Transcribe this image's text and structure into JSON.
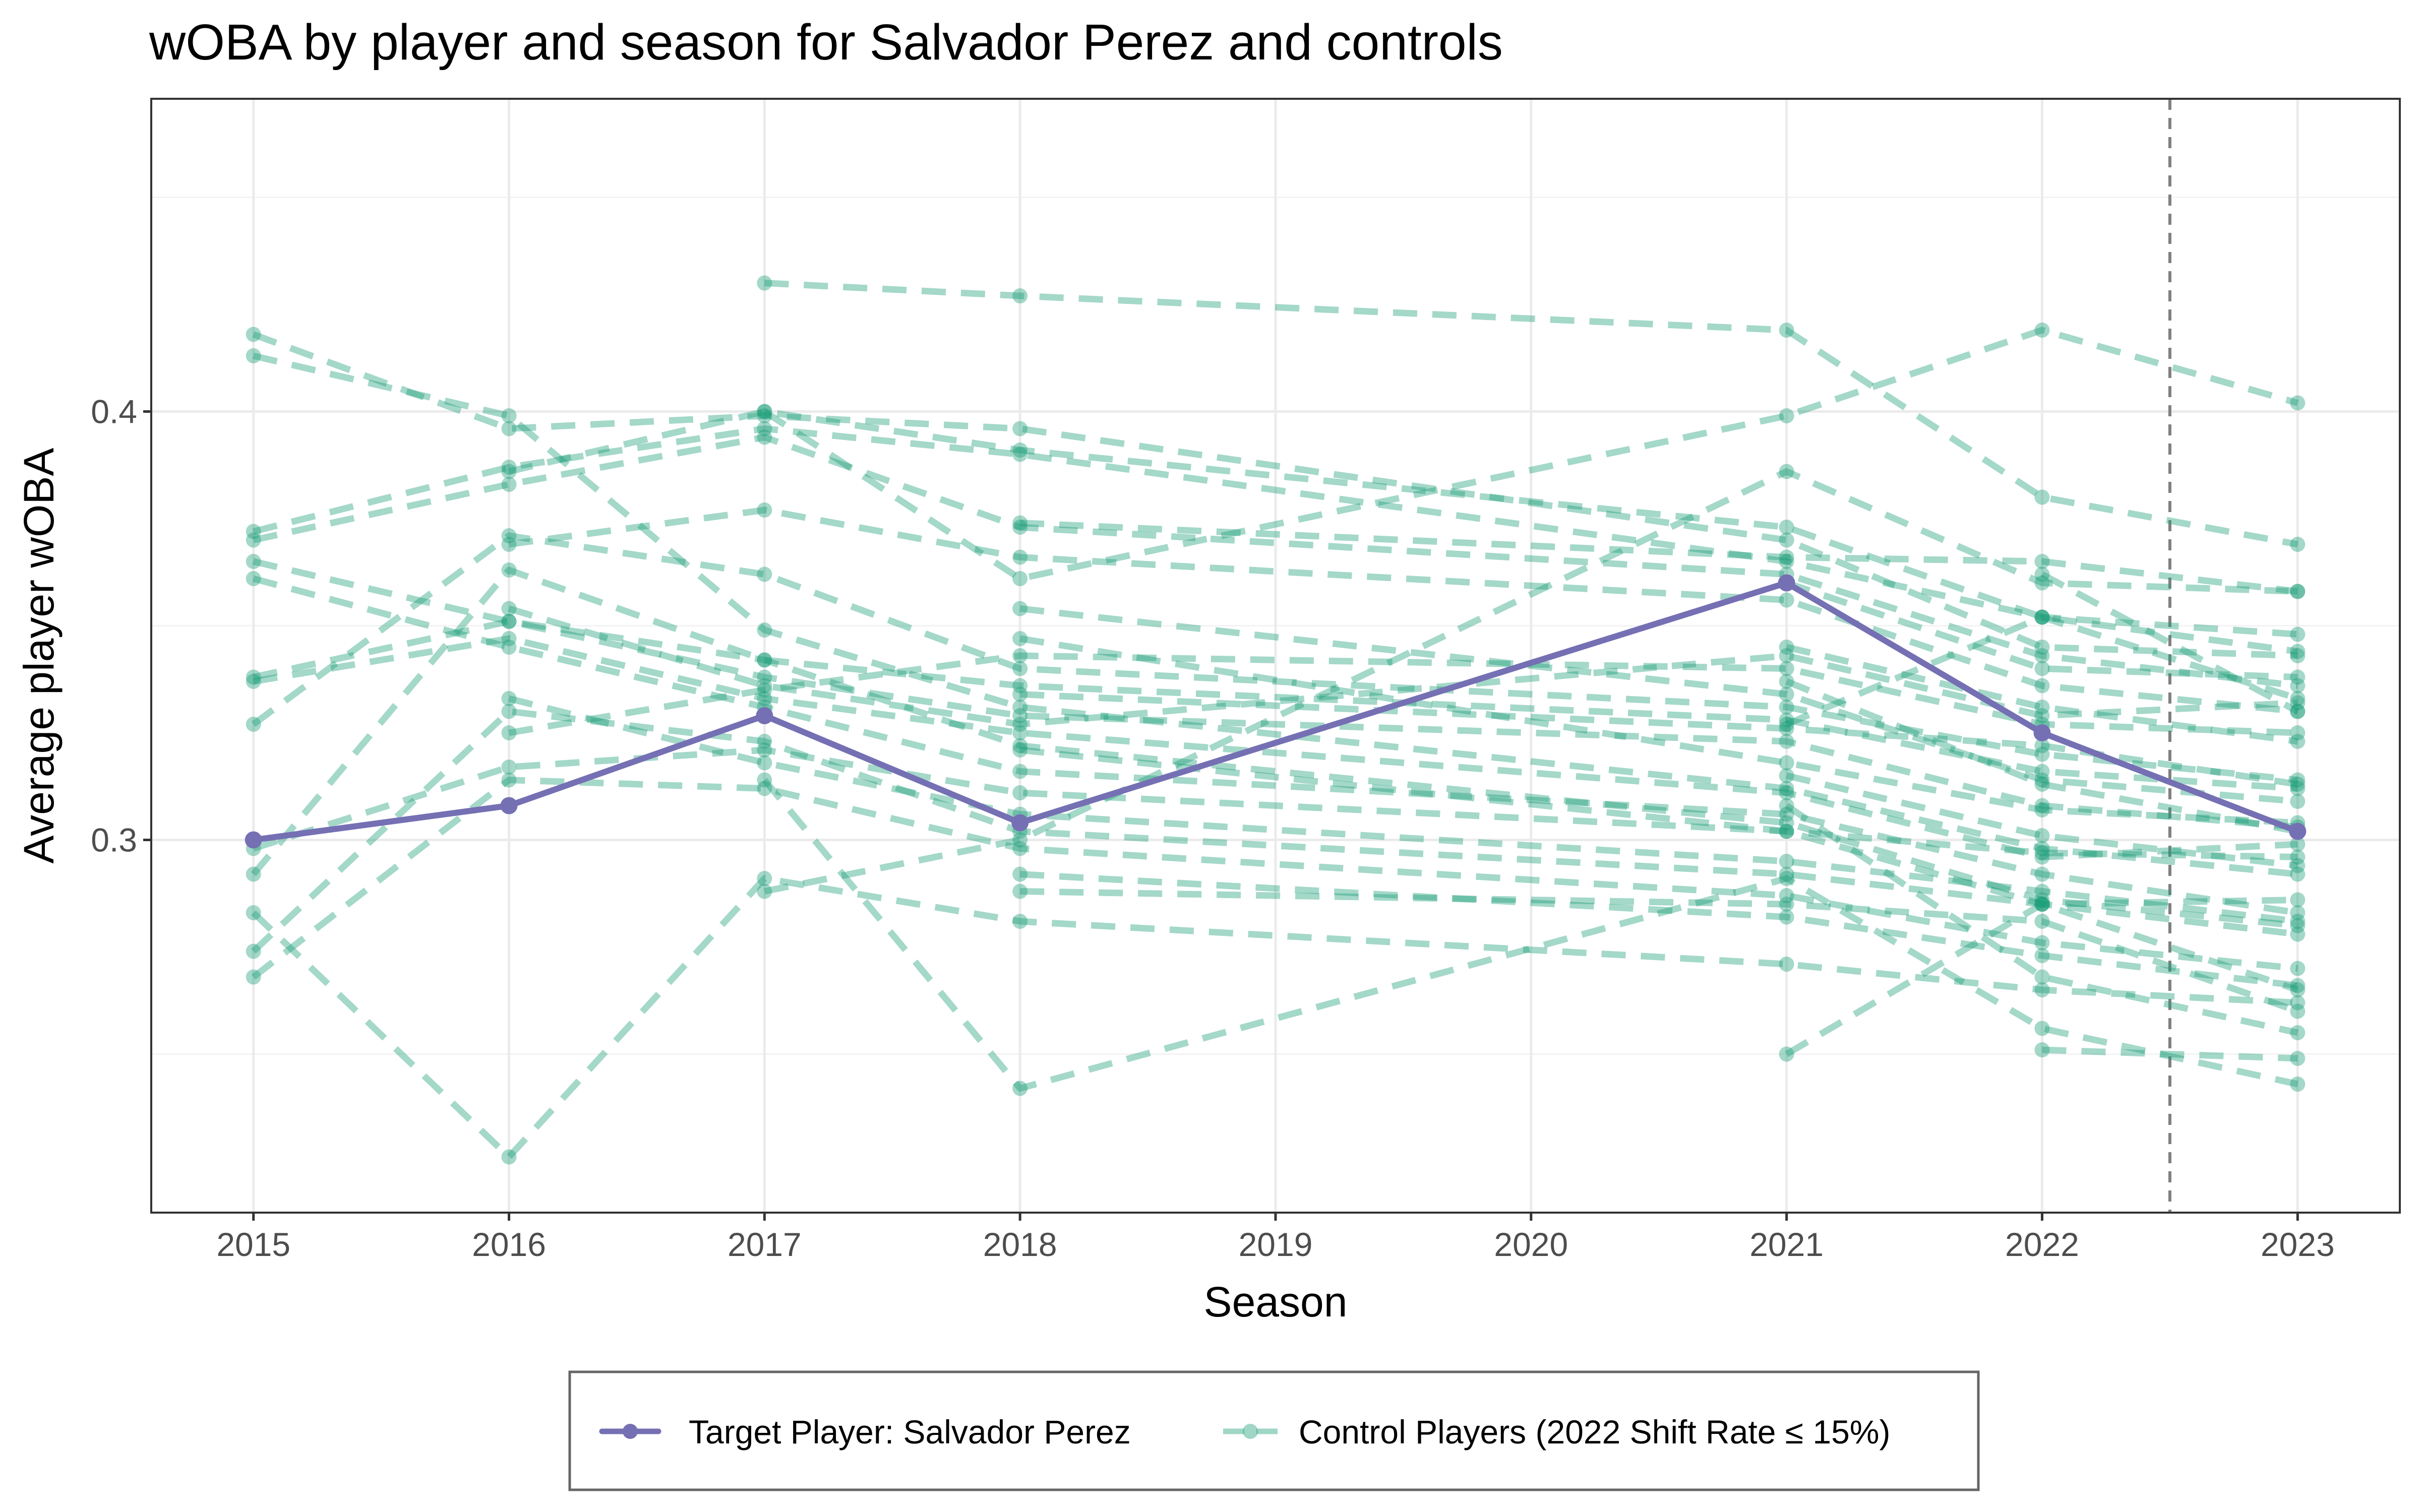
{
  "chart_data": {
    "type": "line",
    "title": "wOBA by player and season for Salvador Perez and controls",
    "xlabel": "Season",
    "ylabel": "Average player wOBA",
    "x_ticks": [
      2015,
      2016,
      2017,
      2018,
      2019,
      2020,
      2021,
      2022,
      2023
    ],
    "y_ticks": [
      0.3,
      0.4
    ],
    "y_tick_labels": [
      "0.3",
      "0.4"
    ],
    "xlim": [
      2014.6,
      2023.4
    ],
    "ylim": [
      0.213,
      0.473
    ],
    "grid": true,
    "reference_line": {
      "x": 2022.5,
      "style": "dashed",
      "color": "#7f7f7f"
    },
    "legend": {
      "position": "bottom",
      "entries": [
        {
          "label": "Target Player: Salvador Perez",
          "color": "#7570b3",
          "style": "solid"
        },
        {
          "label": "Control Players (2022 Shift Rate ≤ 15%)",
          "color": "#1b9e77",
          "style": "dashed"
        }
      ]
    },
    "colors": {
      "target": "#7570b3",
      "control": "#1b9e77"
    },
    "target_series": {
      "name": "Target Player: Salvador Perez",
      "x": [
        2015,
        2016,
        2017,
        2018,
        2021,
        2022,
        2023
      ],
      "y": [
        0.3,
        0.308,
        0.329,
        0.304,
        0.36,
        0.325,
        0.302
      ]
    },
    "control_series": [
      {
        "x": [
          2015,
          2016,
          2017,
          2018,
          2021,
          2022,
          2023
        ],
        "y": [
          0.418,
          0.396,
          0.399,
          0.396,
          0.37,
          0.345,
          0.343
        ]
      },
      {
        "x": [
          2015,
          2016,
          2017,
          2018,
          2021,
          2022,
          2023
        ],
        "y": [
          0.413,
          0.399,
          0.349,
          0.331,
          0.312,
          0.298,
          0.292
        ]
      },
      {
        "x": [
          2015,
          2016,
          2017,
          2018,
          2021,
          2022,
          2023
        ],
        "y": [
          0.372,
          0.387,
          0.396,
          0.39,
          0.365,
          0.352,
          0.348
        ]
      },
      {
        "x": [
          2015,
          2016,
          2017,
          2018,
          2021,
          2022,
          2023
        ],
        "y": [
          0.37,
          0.383,
          0.394,
          0.373,
          0.362,
          0.343,
          0.336
        ]
      },
      {
        "x": [
          2015,
          2016,
          2017,
          2018,
          2021,
          2022,
          2023
        ],
        "y": [
          0.365,
          0.351,
          0.342,
          0.322,
          0.304,
          0.286,
          0.28
        ]
      },
      {
        "x": [
          2015,
          2016,
          2017,
          2018,
          2021,
          2022,
          2023
        ],
        "y": [
          0.361,
          0.345,
          0.331,
          0.316,
          0.306,
          0.292,
          0.283
        ]
      },
      {
        "x": [
          2015,
          2016,
          2017,
          2018,
          2021,
          2022,
          2023
        ],
        "y": [
          0.338,
          0.351,
          0.338,
          0.329,
          0.323,
          0.308,
          0.303
        ]
      },
      {
        "x": [
          2015,
          2016,
          2017,
          2018,
          2021,
          2022,
          2023
        ],
        "y": [
          0.337,
          0.347,
          0.333,
          0.325,
          0.311,
          0.296,
          0.299
        ]
      },
      {
        "x": [
          2015,
          2016,
          2017,
          2018,
          2021,
          2022,
          2023
        ],
        "y": [
          0.327,
          0.371,
          0.362,
          0.34,
          0.331,
          0.32,
          0.314
        ]
      },
      {
        "x": [
          2015,
          2016,
          2017,
          2018,
          2021,
          2022,
          2023
        ],
        "y": [
          0.298,
          0.317,
          0.321,
          0.311,
          0.302,
          0.297,
          0.296
        ]
      },
      {
        "x": [
          2015,
          2016,
          2017,
          2018,
          2021,
          2022,
          2023
        ],
        "y": [
          0.292,
          0.363,
          0.342,
          0.336,
          0.328,
          0.316,
          0.312
        ]
      },
      {
        "x": [
          2015,
          2016,
          2017,
          2018,
          2021,
          2022,
          2023
        ],
        "y": [
          0.283,
          0.226,
          0.291,
          0.281,
          0.271,
          0.265,
          0.262
        ]
      },
      {
        "x": [
          2015,
          2016,
          2017,
          2018,
          2021,
          2022,
          2023
        ],
        "y": [
          0.274,
          0.33,
          0.323,
          0.302,
          0.292,
          0.285,
          0.286
        ]
      },
      {
        "x": [
          2015,
          2016,
          2017,
          2018,
          2021,
          2022,
          2023
        ],
        "y": [
          0.268,
          0.314,
          0.312,
          0.298,
          0.287,
          0.276,
          0.27
        ]
      },
      {
        "x": [
          2016,
          2017,
          2018,
          2021,
          2022,
          2023
        ],
        "y": [
          0.386,
          0.4,
          0.391,
          0.373,
          0.352,
          0.344
        ]
      },
      {
        "x": [
          2016,
          2017,
          2018,
          2021,
          2022,
          2023
        ],
        "y": [
          0.369,
          0.377,
          0.366,
          0.356,
          0.336,
          0.33
        ]
      },
      {
        "x": [
          2016,
          2017,
          2018,
          2021,
          2022,
          2023
        ],
        "y": [
          0.354,
          0.336,
          0.327,
          0.343,
          0.329,
          0.332
        ]
      },
      {
        "x": [
          2016,
          2017,
          2018,
          2021,
          2022,
          2023
        ],
        "y": [
          0.333,
          0.318,
          0.306,
          0.295,
          0.288,
          0.281
        ]
      },
      {
        "x": [
          2016,
          2017,
          2018,
          2021,
          2022,
          2023
        ],
        "y": [
          0.325,
          0.335,
          0.343,
          0.34,
          0.327,
          0.325
        ]
      },
      {
        "x": [
          2017,
          2018,
          2021,
          2022,
          2023
        ],
        "y": [
          0.43,
          0.427,
          0.419,
          0.38,
          0.369
        ]
      },
      {
        "x": [
          2017,
          2018,
          2021,
          2022,
          2023
        ],
        "y": [
          0.4,
          0.361,
          0.399,
          0.419,
          0.402
        ]
      },
      {
        "x": [
          2017,
          2018,
          2021,
          2022,
          2023
        ],
        "y": [
          0.288,
          0.3,
          0.386,
          0.36,
          0.358
        ]
      },
      {
        "x": [
          2017,
          2018,
          2021,
          2022,
          2023
        ],
        "y": [
          0.314,
          0.242,
          0.291,
          0.256,
          0.243
        ]
      },
      {
        "x": [
          2018,
          2021,
          2022,
          2023
        ],
        "y": [
          0.374,
          0.366,
          0.365,
          0.358
        ]
      },
      {
        "x": [
          2018,
          2021,
          2022,
          2023
        ],
        "y": [
          0.354,
          0.334,
          0.314,
          0.309
        ]
      },
      {
        "x": [
          2018,
          2021,
          2022,
          2023
        ],
        "y": [
          0.347,
          0.318,
          0.307,
          0.304
        ]
      },
      {
        "x": [
          2018,
          2021,
          2022,
          2023
        ],
        "y": [
          0.334,
          0.326,
          0.322,
          0.313
        ]
      },
      {
        "x": [
          2018,
          2021,
          2022,
          2023
        ],
        "y": [
          0.321,
          0.302,
          0.285,
          0.278
        ]
      },
      {
        "x": [
          2018,
          2021,
          2022,
          2023
        ],
        "y": [
          0.292,
          0.282,
          0.273,
          0.266
        ]
      },
      {
        "x": [
          2018,
          2021,
          2022,
          2023
        ],
        "y": [
          0.288,
          0.285,
          0.281,
          0.26
        ]
      },
      {
        "x": [
          2021,
          2022,
          2023
        ],
        "y": [
          0.25,
          0.285,
          0.265
        ]
      },
      {
        "x": [
          2021,
          2022,
          2023
        ],
        "y": [
          0.36,
          0.34,
          0.338
        ]
      },
      {
        "x": [
          2021,
          2022,
          2023
        ],
        "y": [
          0.345,
          0.331,
          0.323
        ]
      },
      {
        "x": [
          2021,
          2022,
          2023
        ],
        "y": [
          0.337,
          0.313,
          0.302
        ]
      },
      {
        "x": [
          2021,
          2022,
          2023
        ],
        "y": [
          0.315,
          0.301,
          0.294
        ]
      },
      {
        "x": [
          2021,
          2022,
          2023
        ],
        "y": [
          0.308,
          0.268,
          0.255
        ]
      },
      {
        "x": [
          2021,
          2022,
          2023
        ],
        "y": [
          0.327,
          0.352,
          0.333
        ]
      },
      {
        "x": [
          2022,
          2023
        ],
        "y": [
          0.251,
          0.249
        ]
      },
      {
        "x": [
          2022,
          2023
        ],
        "y": [
          0.362,
          0.33
        ]
      }
    ]
  }
}
